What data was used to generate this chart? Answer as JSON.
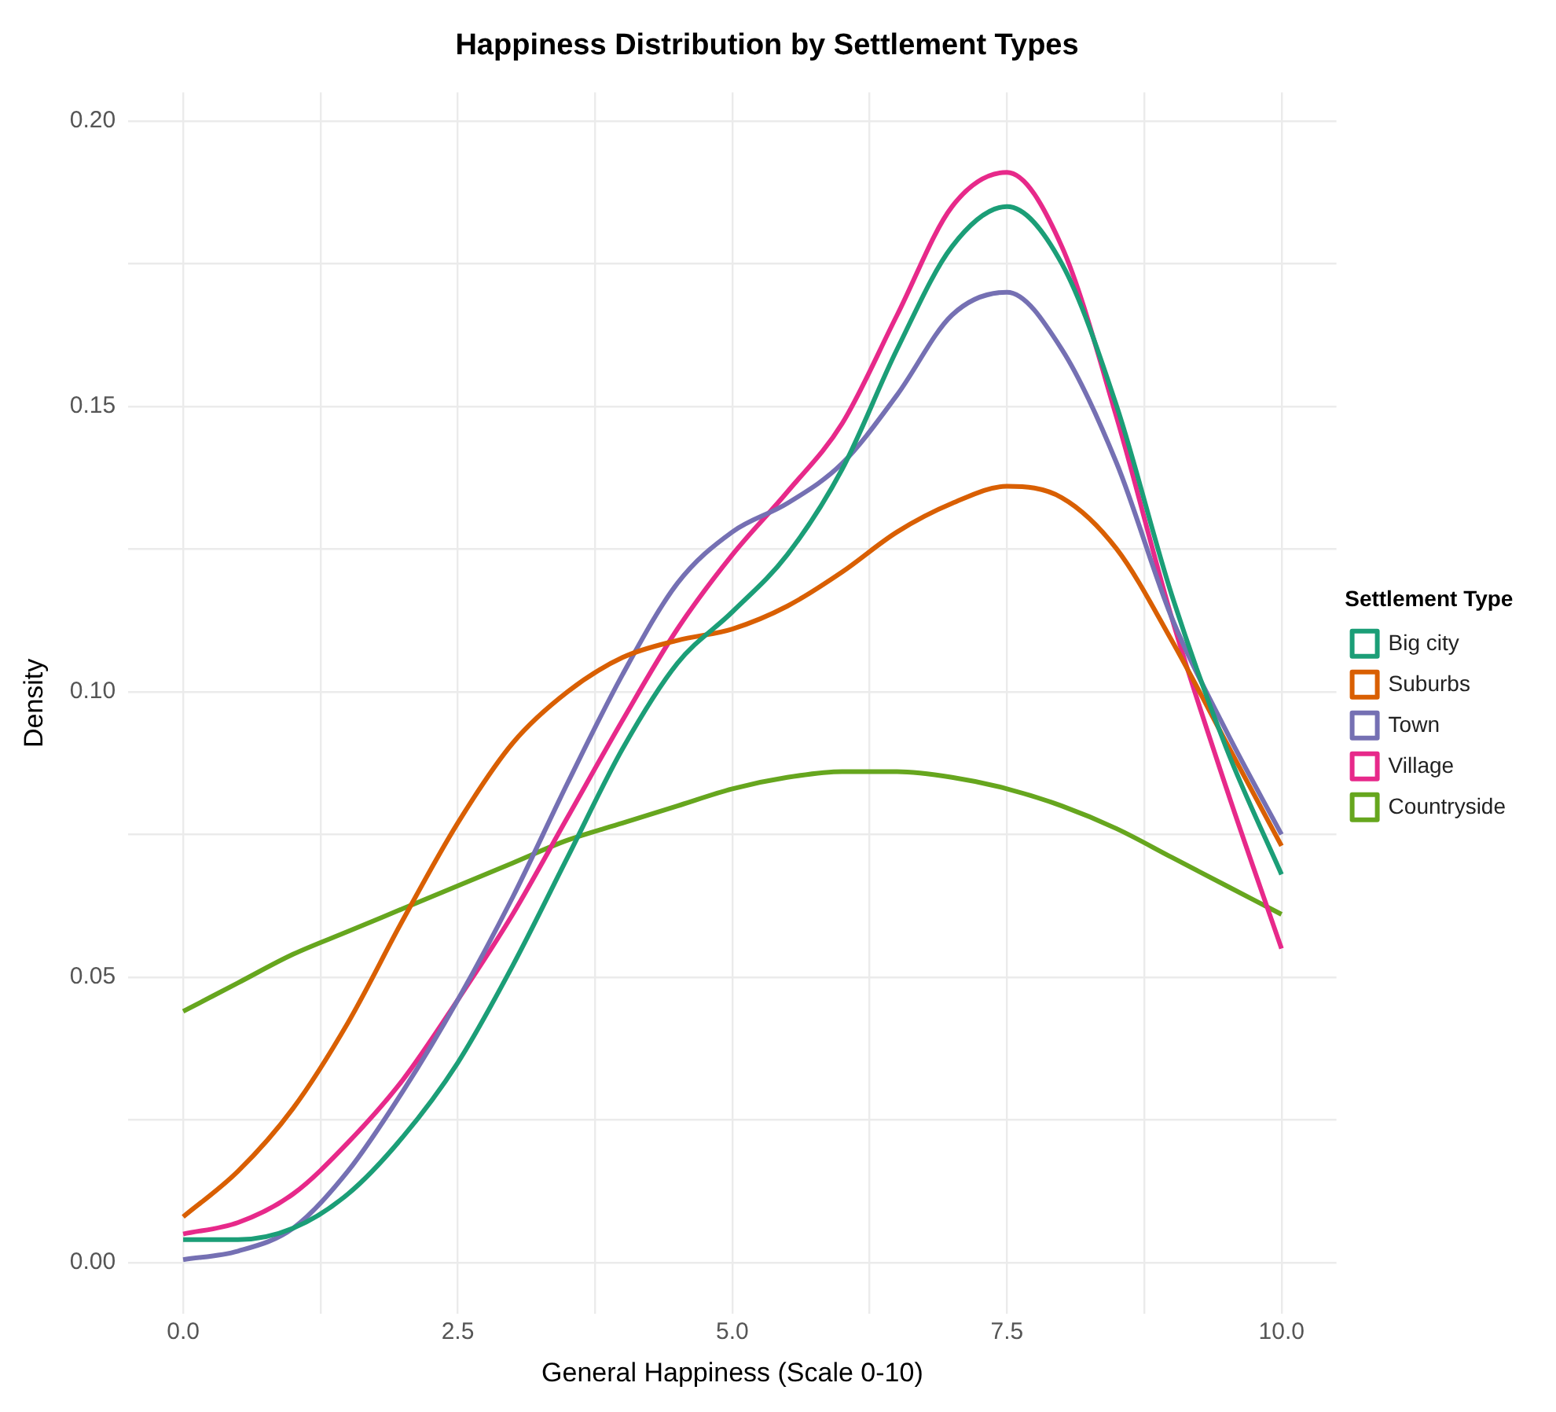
{
  "chart_data": {
    "type": "line",
    "title": "Happiness Distribution by Settlement Types",
    "xlabel": "General Happiness (Scale 0-10)",
    "ylabel": "Density",
    "legend_title": "Settlement Type",
    "x": [
      0,
      0.5,
      1,
      1.5,
      2,
      2.5,
      3,
      3.5,
      4,
      4.5,
      5,
      5.5,
      6,
      6.5,
      7,
      7.5,
      8,
      8.5,
      9,
      9.5,
      10
    ],
    "series": [
      {
        "name": "Big city",
        "color": "#1b9e77",
        "values": [
          0.004,
          0.004,
          0.006,
          0.012,
          0.022,
          0.035,
          0.052,
          0.071,
          0.09,
          0.105,
          0.114,
          0.124,
          0.139,
          0.16,
          0.178,
          0.185,
          0.175,
          0.15,
          0.117,
          0.09,
          0.068
        ]
      },
      {
        "name": "Suburbs",
        "color": "#d95f02",
        "values": [
          0.008,
          0.016,
          0.027,
          0.042,
          0.06,
          0.077,
          0.091,
          0.1,
          0.106,
          0.109,
          0.111,
          0.115,
          0.121,
          0.128,
          0.133,
          0.136,
          0.134,
          0.125,
          0.109,
          0.091,
          0.073
        ]
      },
      {
        "name": "Town",
        "color": "#7570b3",
        "values": [
          0.0005,
          0.002,
          0.006,
          0.016,
          0.03,
          0.046,
          0.064,
          0.084,
          0.103,
          0.119,
          0.128,
          0.133,
          0.14,
          0.152,
          0.166,
          0.17,
          0.16,
          0.14,
          0.113,
          0.093,
          0.075
        ]
      },
      {
        "name": "Village",
        "color": "#e7298a",
        "values": [
          0.005,
          0.007,
          0.012,
          0.021,
          0.032,
          0.046,
          0.061,
          0.078,
          0.095,
          0.111,
          0.124,
          0.135,
          0.147,
          0.166,
          0.185,
          0.191,
          0.178,
          0.148,
          0.113,
          0.083,
          0.055
        ]
      },
      {
        "name": "Countryside",
        "color": "#66a61e",
        "values": [
          0.044,
          0.049,
          0.054,
          0.058,
          0.062,
          0.066,
          0.07,
          0.074,
          0.077,
          0.08,
          0.083,
          0.085,
          0.086,
          0.086,
          0.085,
          0.083,
          0.08,
          0.076,
          0.071,
          0.066,
          0.061
        ]
      }
    ],
    "xlim": [
      -0.5,
      10.5
    ],
    "ylim": [
      -0.009,
      0.205
    ],
    "xticks": [
      {
        "value": 0,
        "label": "0.0"
      },
      {
        "value": 1.25,
        "label": null
      },
      {
        "value": 2.5,
        "label": "2.5"
      },
      {
        "value": 3.75,
        "label": null
      },
      {
        "value": 5,
        "label": "5.0"
      },
      {
        "value": 6.25,
        "label": null
      },
      {
        "value": 7.5,
        "label": "7.5"
      },
      {
        "value": 8.75,
        "label": null
      },
      {
        "value": 10,
        "label": "10.0"
      }
    ],
    "yticks": [
      {
        "value": 0,
        "label": "0.00"
      },
      {
        "value": 0.025,
        "label": null
      },
      {
        "value": 0.05,
        "label": "0.05"
      },
      {
        "value": 0.075,
        "label": null
      },
      {
        "value": 0.1,
        "label": "0.10"
      },
      {
        "value": 0.125,
        "label": null
      },
      {
        "value": 0.15,
        "label": "0.15"
      },
      {
        "value": 0.175,
        "label": null
      },
      {
        "value": 0.2,
        "label": "0.20"
      }
    ],
    "grid": true,
    "legend": "right",
    "marker": "none",
    "line_style": "solid"
  }
}
